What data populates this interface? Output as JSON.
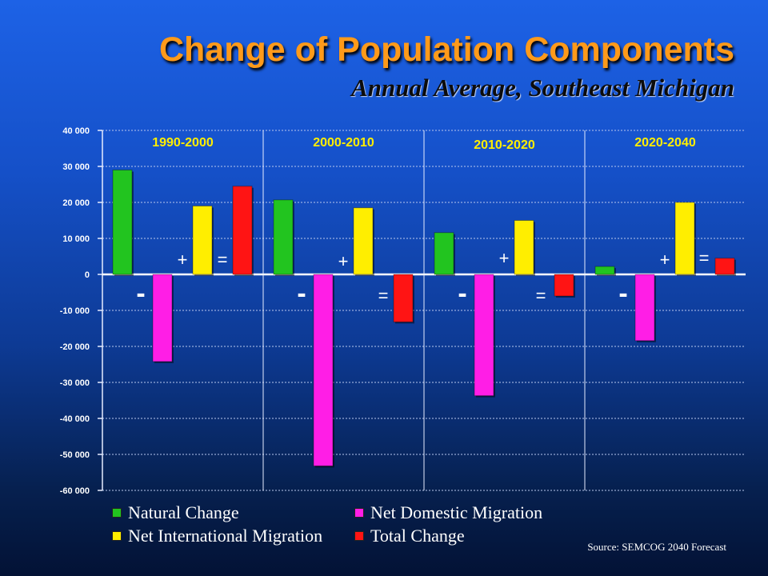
{
  "title": "Change of Population Components",
  "subtitle": "Annual Average, Southeast Michigan",
  "source": "Source: SEMCOG 2040 Forecast",
  "chart_data": {
    "type": "bar",
    "categories": [
      "1990-2000",
      "2000-2010",
      "2010-2020",
      "2020-2040"
    ],
    "series": [
      {
        "name": "Natural Change",
        "color": "#22c41f",
        "values": [
          29000,
          20700,
          11600,
          2200
        ]
      },
      {
        "name": "Net Domestic Migration",
        "color": "#ff1ee6",
        "values": [
          -24200,
          -53200,
          -33700,
          -18400
        ]
      },
      {
        "name": "Net International Migration",
        "color": "#ffee00",
        "values": [
          19000,
          18500,
          15000,
          20000
        ]
      },
      {
        "name": "Total Change",
        "color": "#ff1414",
        "values": [
          24500,
          -13200,
          -6000,
          4500
        ]
      }
    ],
    "ylim": [
      -60000,
      40000
    ],
    "yticks": [
      40000,
      30000,
      20000,
      10000,
      0,
      -10000,
      -20000,
      -30000,
      -40000,
      -50000,
      -60000
    ],
    "ytick_labels": [
      "40 000",
      "30 000",
      "20 000",
      "10 000",
      "0",
      "-10 000",
      "-20 000",
      "-30 000",
      "-40 000",
      "-50 000",
      "-60 000"
    ],
    "grid": true,
    "legend_position": "bottom",
    "annotations": [
      [
        "-",
        "+",
        "="
      ],
      [
        "-",
        "+",
        "="
      ],
      [
        "-",
        "+",
        "="
      ],
      [
        "-",
        "+",
        "="
      ]
    ]
  }
}
